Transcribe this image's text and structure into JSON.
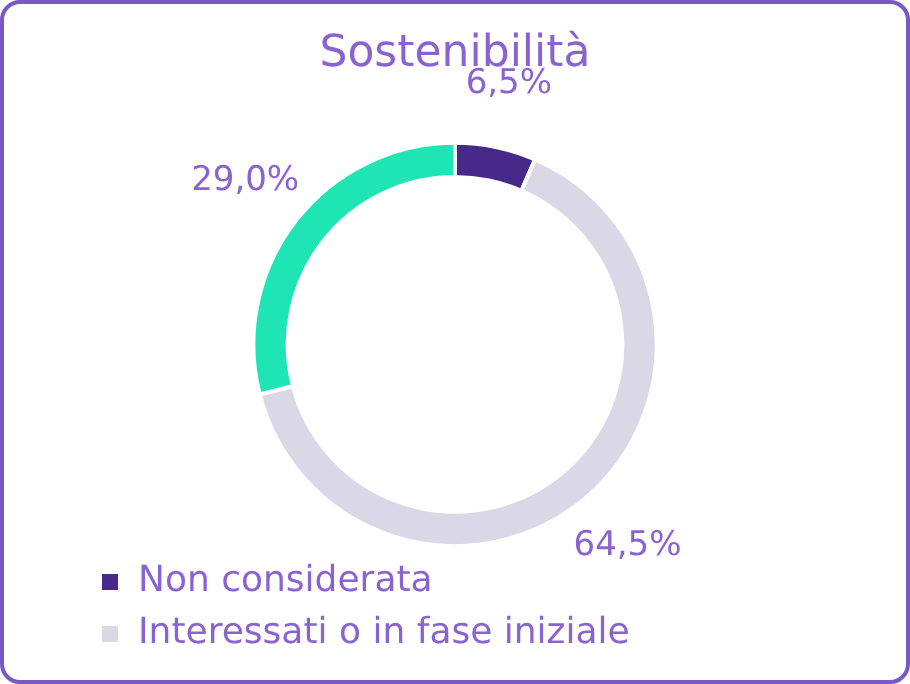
{
  "chart_data": {
    "type": "donut",
    "title": "Sostenibilità",
    "categories": [
      "Non considerata",
      "Interessati o in fase iniziale",
      null
    ],
    "values": [
      6.5,
      64.5,
      29.0
    ],
    "colors": [
      "#47298a",
      "#dad8e6",
      "#1fe5b5"
    ],
    "value_labels": [
      "6,5%",
      "64,5%",
      "29,0%"
    ],
    "legend": "bottom"
  }
}
